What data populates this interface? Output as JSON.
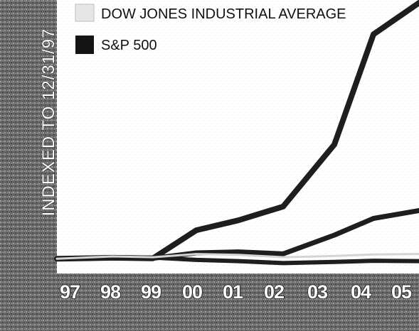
{
  "colors": {
    "dow_series": "#d4d4d4",
    "sp500_series": "#1e1e1e",
    "other_series": "#1e1e1e",
    "frame": "#5a5a5a"
  },
  "chart_data": {
    "type": "line",
    "ylabel": "INDEXED TO 12/31/97",
    "categories": [
      "97",
      "98",
      "99",
      "00",
      "01",
      "02",
      "03",
      "04",
      "05"
    ],
    "legend": {
      "placement": "top-left",
      "entries": [
        "DOW JONES INDUSTRIAL AVERAGE",
        "S&P 500"
      ]
    },
    "series": [
      {
        "key": "top",
        "values": [
          100,
          105,
          102,
          245,
          295,
          365,
          680,
          1240,
          1400
        ],
        "width": 8
      },
      {
        "key": "middle",
        "values": [
          100,
          105,
          102,
          130,
          135,
          125,
          220,
          305,
          345
        ],
        "width": 7
      },
      {
        "name": "S&P 500",
        "key": "sp500",
        "values": [
          100,
          108,
          106,
          94,
          88,
          78,
          84,
          90,
          88
        ],
        "width": 6
      },
      {
        "name": "DOW JONES INDUSTRIAL AVERAGE",
        "key": "dow",
        "values": [
          100,
          112,
          108,
          124,
          120,
          108,
          114,
          122,
          124
        ],
        "width": 3
      }
    ],
    "ylim": [
      0,
      1400
    ],
    "grid": false
  }
}
